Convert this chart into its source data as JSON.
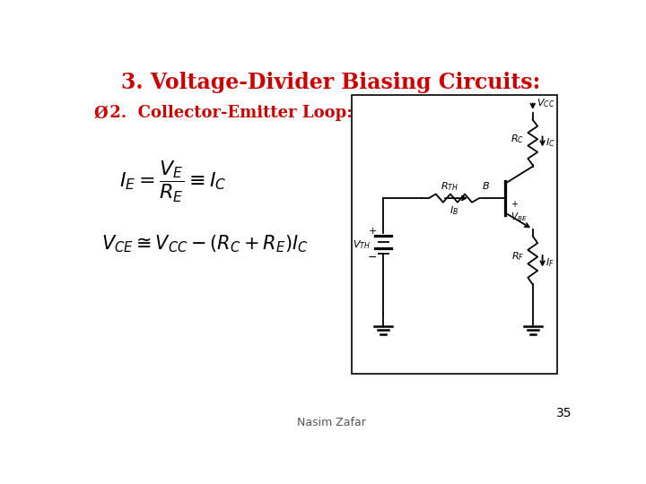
{
  "title": "3. Voltage-Divider Biasing Circuits:",
  "title_color": "#CC0000",
  "title_fontsize": 17,
  "subtitle_arrow": "Ø",
  "subtitle_text": " 2.  Collector-Emitter Loop:",
  "subtitle_color": "#CC0000",
  "subtitle_fontsize": 13,
  "bg_color": "#FFFFFF",
  "formula1": "$I_E = \\dfrac{V_E}{R_E} \\equiv I_C$",
  "formula2": "$V_{CE} \\cong V_{CC} - (R_C + R_E)I_C$",
  "formula_color": "#000000",
  "formula1_fontsize": 16,
  "formula2_fontsize": 15,
  "page_number": "35",
  "footer": "Nasim Zafar"
}
